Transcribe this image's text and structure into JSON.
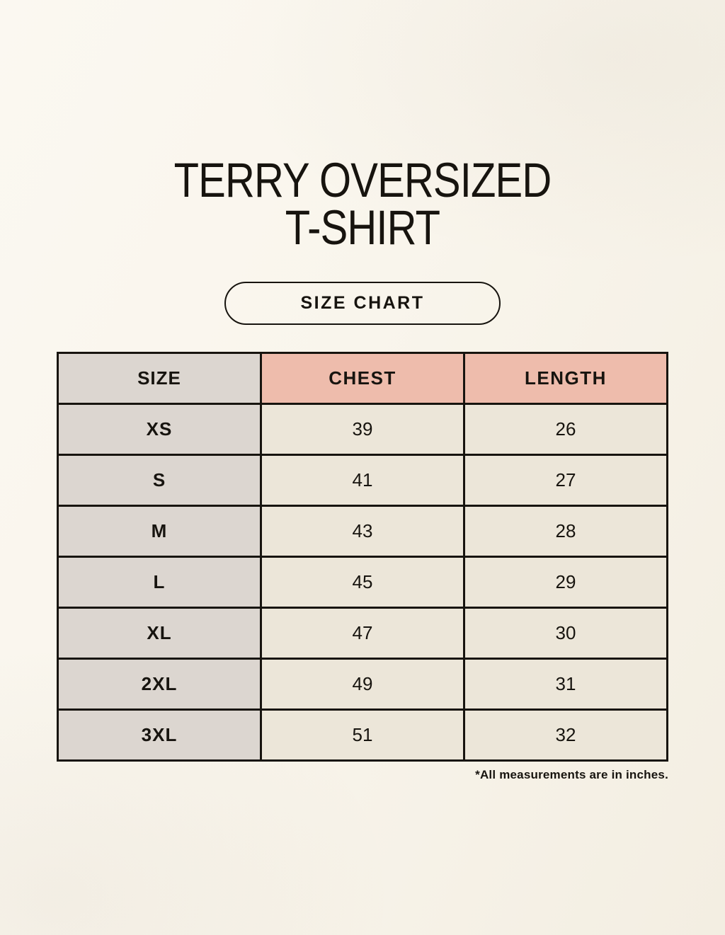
{
  "header": {
    "title_line1": "TERRY OVERSIZED",
    "title_line2": "T-SHIRT",
    "size_chart_label": "SIZE CHART"
  },
  "table": {
    "columns": [
      "SIZE",
      "CHEST",
      "LENGTH"
    ],
    "rows": [
      {
        "size": "XS",
        "chest": "39",
        "length": "26"
      },
      {
        "size": "S",
        "chest": "41",
        "length": "27"
      },
      {
        "size": "M",
        "chest": "43",
        "length": "28"
      },
      {
        "size": "L",
        "chest": "45",
        "length": "29"
      },
      {
        "size": "XL",
        "chest": "47",
        "length": "30"
      },
      {
        "size": "2XL",
        "chest": "49",
        "length": "31"
      },
      {
        "size": "3XL",
        "chest": "51",
        "length": "32"
      }
    ]
  },
  "footnote": "*All measurements are in inches.",
  "colors": {
    "background": "#f9f5ec",
    "size_column_bg": "#dcd6d0",
    "measure_header_bg": "#eebcac",
    "value_cell_bg": "#ece6d9",
    "border": "#17140f",
    "text": "#17140f"
  },
  "chart_data": {
    "type": "table",
    "title": "TERRY OVERSIZED T-SHIRT",
    "subtitle": "SIZE CHART",
    "columns": [
      "SIZE",
      "CHEST",
      "LENGTH"
    ],
    "rows": [
      [
        "XS",
        39,
        26
      ],
      [
        "S",
        41,
        27
      ],
      [
        "M",
        43,
        28
      ],
      [
        "L",
        45,
        29
      ],
      [
        "XL",
        47,
        30
      ],
      [
        "2XL",
        49,
        31
      ],
      [
        "3XL",
        51,
        32
      ]
    ],
    "note": "*All measurements are in inches.",
    "units": "inches"
  }
}
